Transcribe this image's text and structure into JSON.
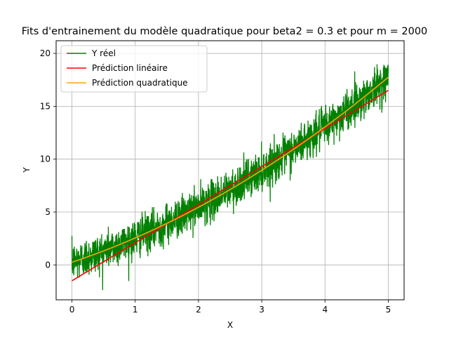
{
  "chart_data": {
    "type": "line",
    "title": "Fits d'entrainement du modèle quadratique pour beta2 = 0.3 et pour m = 2000",
    "xlabel": "X",
    "ylabel": "Y",
    "xlim": [
      -0.25,
      5.25
    ],
    "ylim": [
      -3.3,
      21.2
    ],
    "xticks": [
      0,
      1,
      2,
      3,
      4,
      5
    ],
    "yticks": [
      0,
      5,
      10,
      15,
      20
    ],
    "grid": true,
    "legend_position": "top-left",
    "n_points": 2000,
    "x_range": [
      0,
      5
    ],
    "series": [
      {
        "name": "Y réel",
        "color": "#008000",
        "kind": "noisy",
        "noise_std": 0.9,
        "trend_coeffs": [
          0.25,
          2.0,
          0.3
        ]
      },
      {
        "name": "Prédiction linéaire",
        "color": "#ff0000",
        "kind": "line",
        "coeffs": [
          -1.5,
          3.6
        ]
      },
      {
        "name": "Prédiction quadratique",
        "color": "#ffa500",
        "kind": "quadratic",
        "coeffs": [
          0.25,
          2.0,
          0.3
        ]
      }
    ]
  }
}
